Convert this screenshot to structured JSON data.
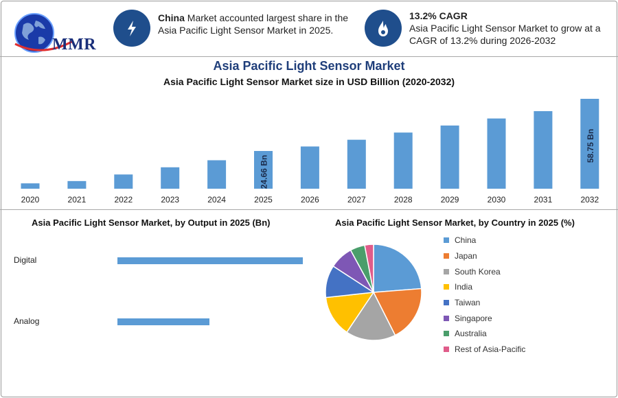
{
  "header": {
    "logo_text": "MMR",
    "highlight1": {
      "icon": "lightning-bolt-icon",
      "bold": "China",
      "text": " Market accounted largest share in the Asia Pacific Light Sensor Market in 2025."
    },
    "highlight2": {
      "icon": "flame-icon",
      "bold": "13.2% CAGR",
      "text": "Asia Pacific Light Sensor Market to grow at a CAGR of 13.2% during 2026-2032"
    }
  },
  "colors": {
    "bar": "#5b9bd5",
    "badge": "#1f4e8c",
    "title": "#1f3e7a"
  },
  "chart_data": [
    {
      "type": "bar",
      "title": "Asia Pacific Light Sensor Market",
      "subtitle": "Asia Pacific Light Sensor Market size in USD Billion (2020-2032)",
      "categories": [
        "2020",
        "2021",
        "2022",
        "2023",
        "2024",
        "2025",
        "2026",
        "2027",
        "2028",
        "2029",
        "2030",
        "2031",
        "2032"
      ],
      "values": [
        3.5,
        5.0,
        9.3,
        14.0,
        18.6,
        24.66,
        27.6,
        32.0,
        36.7,
        41.3,
        45.9,
        50.7,
        58.75
      ],
      "data_labels": {
        "5": "24.66 Bn",
        "12": "58.75 Bn"
      },
      "ylim": [
        0,
        58.75
      ],
      "grid": false
    },
    {
      "type": "bar",
      "orientation": "horizontal",
      "title": "Asia Pacific Light Sensor Market, by Output in 2025 (Bn)",
      "categories": [
        "Digital",
        "Analog"
      ],
      "values": [
        16.5,
        8.2
      ],
      "xlim": [
        0,
        16.5
      ]
    },
    {
      "type": "pie",
      "title": "Asia Pacific Light Sensor Market, by Country in 2025 (%)",
      "labels": [
        "China",
        "Japan",
        "South Korea",
        "India",
        "Taiwan",
        "Singapore",
        "Australia",
        "Rest of Asia-Pacific"
      ],
      "values": [
        24,
        19,
        17,
        14,
        11,
        8,
        5,
        3
      ],
      "colors": [
        "#5b9bd5",
        "#ed7d31",
        "#a5a5a5",
        "#ffc000",
        "#4472c4",
        "#7e57b5",
        "#4a9e6b",
        "#e05c8a"
      ],
      "legend": "right"
    }
  ]
}
